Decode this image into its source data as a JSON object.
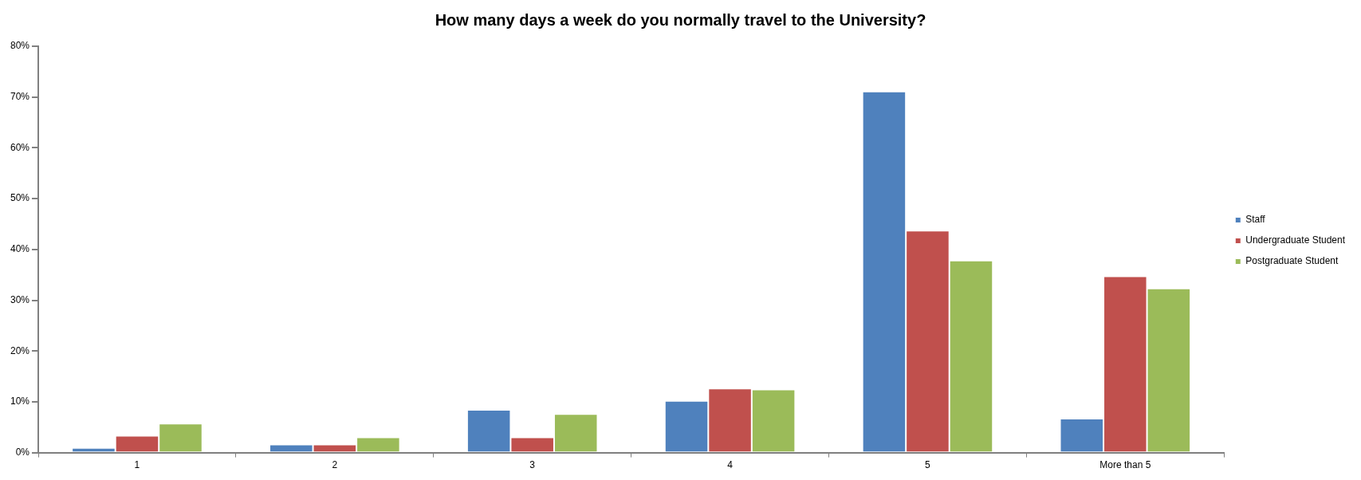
{
  "chart_data": {
    "type": "bar",
    "title": "How many days a week do you normally travel to the University?",
    "categories": [
      "1",
      "2",
      "3",
      "4",
      "5",
      "More than 5"
    ],
    "series": [
      {
        "name": "Staff",
        "color": "#4f81bd",
        "values": [
          0.9,
          1.6,
          8.4,
          10.2,
          71.1,
          6.7
        ]
      },
      {
        "name": "Undergraduate Student",
        "color": "#c0504d",
        "values": [
          3.3,
          1.6,
          3.0,
          12.6,
          43.7,
          34.7
        ]
      },
      {
        "name": "Postgraduate Student",
        "color": "#9bbb59",
        "values": [
          5.7,
          3.0,
          7.6,
          12.4,
          37.8,
          32.3
        ]
      }
    ],
    "ylim": [
      0,
      80
    ],
    "yticks": [
      {
        "value": 0,
        "label": "0%"
      },
      {
        "value": 10,
        "label": "10%"
      },
      {
        "value": 20,
        "label": "20%"
      },
      {
        "value": 30,
        "label": "30%"
      },
      {
        "value": 40,
        "label": "40%"
      },
      {
        "value": 50,
        "label": "50%"
      },
      {
        "value": 60,
        "label": "60%"
      },
      {
        "value": 70,
        "label": "70%"
      },
      {
        "value": 80,
        "label": "80%"
      }
    ],
    "grid": false,
    "legend": "right"
  }
}
